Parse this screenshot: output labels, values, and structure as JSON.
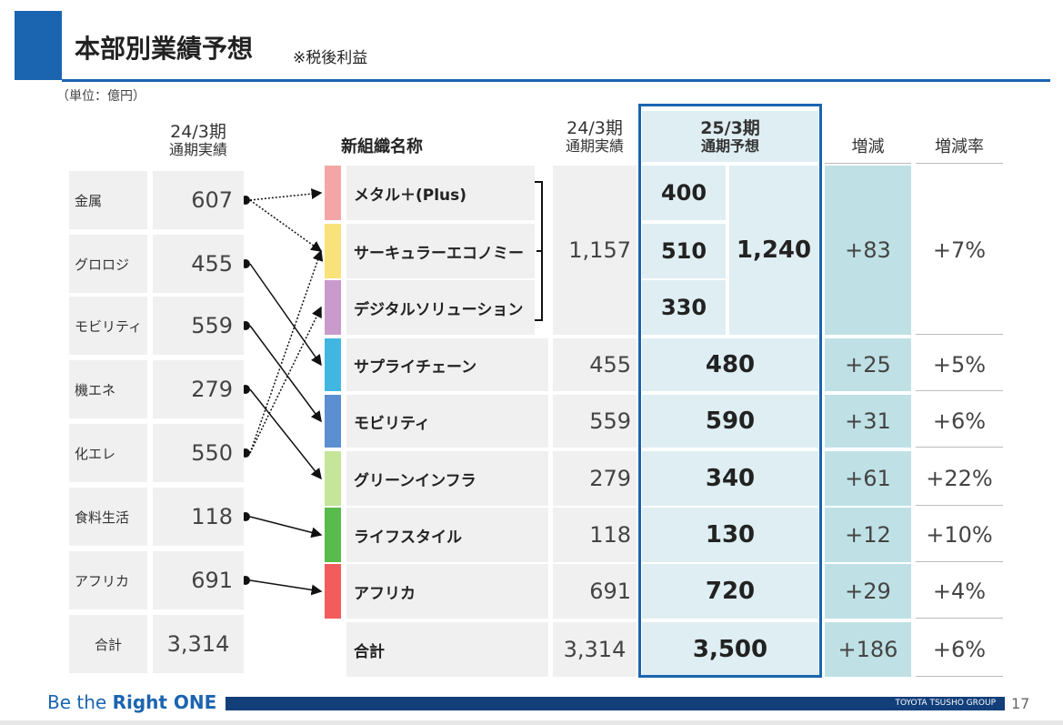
{
  "header": {
    "title": "本部別業績予想",
    "note": "※税後利益"
  },
  "unit": "（単位：億円）",
  "old_table": {
    "header": [
      "24/3期",
      "通期実績"
    ],
    "rows": [
      [
        "金属",
        "607"
      ],
      [
        "グロロジ",
        "455"
      ],
      [
        "モビリティ",
        "559"
      ],
      [
        "機エネ",
        "279"
      ],
      [
        "化エレ",
        "550"
      ],
      [
        "食料生活",
        "118"
      ],
      [
        "アフリカ",
        "691"
      ]
    ],
    "total": [
      "合計",
      "3,314"
    ]
  },
  "new_table": {
    "headers": {
      "name": "新組織名称",
      "prev": [
        "24/3期",
        "通期実績"
      ],
      "forecast": [
        "25/3期",
        "通期予想"
      ],
      "change": "増減",
      "rate": "増減率"
    },
    "group": {
      "rows": [
        {
          "name": "メタル＋(Plus)",
          "forecast": "400"
        },
        {
          "name": "サーキュラーエコノミー",
          "forecast": "510"
        },
        {
          "name": "デジタルソリューション",
          "forecast": "330"
        }
      ],
      "prev": "1,157",
      "forecast": "1,240",
      "change": "+83",
      "rate": "+7%"
    },
    "rows": [
      {
        "name": "サプライチェーン",
        "prev": "455",
        "forecast": "480",
        "change": "+25",
        "rate": "+5%"
      },
      {
        "name": "モビリティ",
        "prev": "559",
        "forecast": "590",
        "change": "+31",
        "rate": "+6%"
      },
      {
        "name": "グリーンインフラ",
        "prev": "279",
        "forecast": "340",
        "change": "+61",
        "rate": "+22%"
      },
      {
        "name": "ライフスタイル",
        "prev": "118",
        "forecast": "130",
        "change": "+12",
        "rate": "+10%"
      },
      {
        "name": "アフリカ",
        "prev": "691",
        "forecast": "720",
        "change": "+29",
        "rate": "+4%"
      }
    ],
    "total": {
      "name": "合計",
      "prev": "3,314",
      "forecast": "3,500",
      "change": "+186",
      "rate": "+6%"
    }
  },
  "footer": {
    "slogan_prefix": "Be the",
    "slogan": "Right ONE",
    "company": "TOYOTA TSUSHO GROUP",
    "page": "17"
  }
}
